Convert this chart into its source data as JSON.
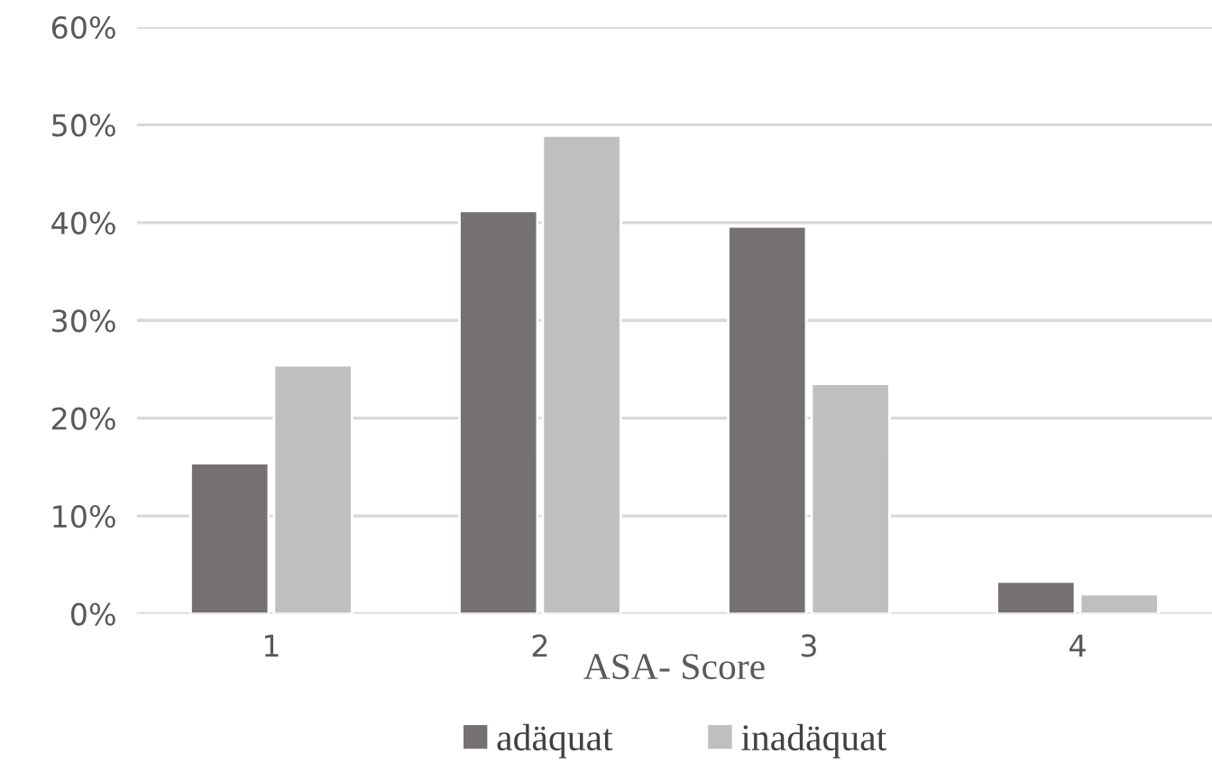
{
  "chart_data": {
    "type": "bar",
    "xlabel": "ASA- Score",
    "categories": [
      "1",
      "2",
      "3",
      "4"
    ],
    "series": [
      {
        "name": "adäquat",
        "color": "#767171",
        "values": [
          15.4,
          41.2,
          39.6,
          3.3
        ]
      },
      {
        "name": "inadäquat",
        "color": "#bfbfbf",
        "values": [
          25.4,
          48.9,
          23.5,
          2.0
        ]
      }
    ],
    "ylim": [
      0,
      60
    ],
    "yticks": [
      {
        "value": 0,
        "label": "0%"
      },
      {
        "value": 10,
        "label": "10%"
      },
      {
        "value": 20,
        "label": "20%"
      },
      {
        "value": 30,
        "label": "30%"
      },
      {
        "value": 40,
        "label": "40%"
      },
      {
        "value": 50,
        "label": "50%"
      },
      {
        "value": 60,
        "label": "60%"
      }
    ],
    "grid": "y",
    "legend": "bottom"
  }
}
